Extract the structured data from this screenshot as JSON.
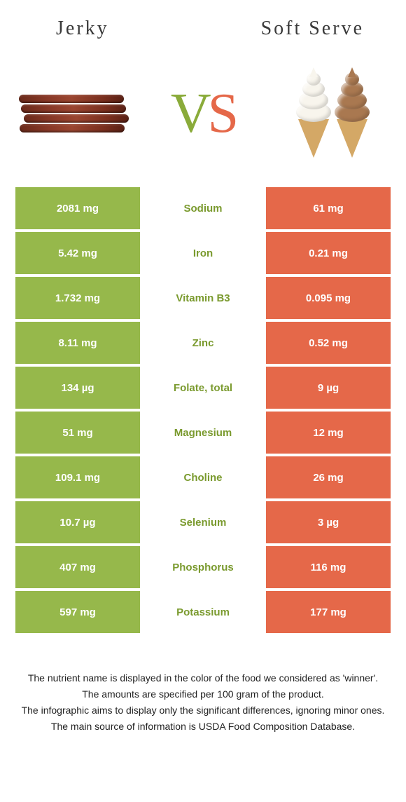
{
  "title_left": "Jerky",
  "title_right": "Soft Serve",
  "colors": {
    "left": "#96b84b",
    "right": "#e56849",
    "left_text_mid": "#7a9a2e",
    "right_text_mid": "#e56849"
  },
  "rows": [
    {
      "left": "2081 mg",
      "label": "Sodium",
      "right": "61 mg",
      "winner": "left"
    },
    {
      "left": "5.42 mg",
      "label": "Iron",
      "right": "0.21 mg",
      "winner": "left"
    },
    {
      "left": "1.732 mg",
      "label": "Vitamin B3",
      "right": "0.095 mg",
      "winner": "left"
    },
    {
      "left": "8.11 mg",
      "label": "Zinc",
      "right": "0.52 mg",
      "winner": "left"
    },
    {
      "left": "134 µg",
      "label": "Folate, total",
      "right": "9 µg",
      "winner": "left"
    },
    {
      "left": "51 mg",
      "label": "Magnesium",
      "right": "12 mg",
      "winner": "left"
    },
    {
      "left": "109.1 mg",
      "label": "Choline",
      "right": "26 mg",
      "winner": "left"
    },
    {
      "left": "10.7 µg",
      "label": "Selenium",
      "right": "3 µg",
      "winner": "left"
    },
    {
      "left": "407 mg",
      "label": "Phosphorus",
      "right": "116 mg",
      "winner": "left"
    },
    {
      "left": "597 mg",
      "label": "Potassium",
      "right": "177 mg",
      "winner": "left"
    }
  ],
  "footer": [
    "The nutrient name is displayed in the color of the food we considered as 'winner'.",
    "The amounts are specified per 100 gram of the product.",
    "The infographic aims to display only the significant differences, ignoring minor ones.",
    "The main source of information is USDA Food Composition Database."
  ]
}
